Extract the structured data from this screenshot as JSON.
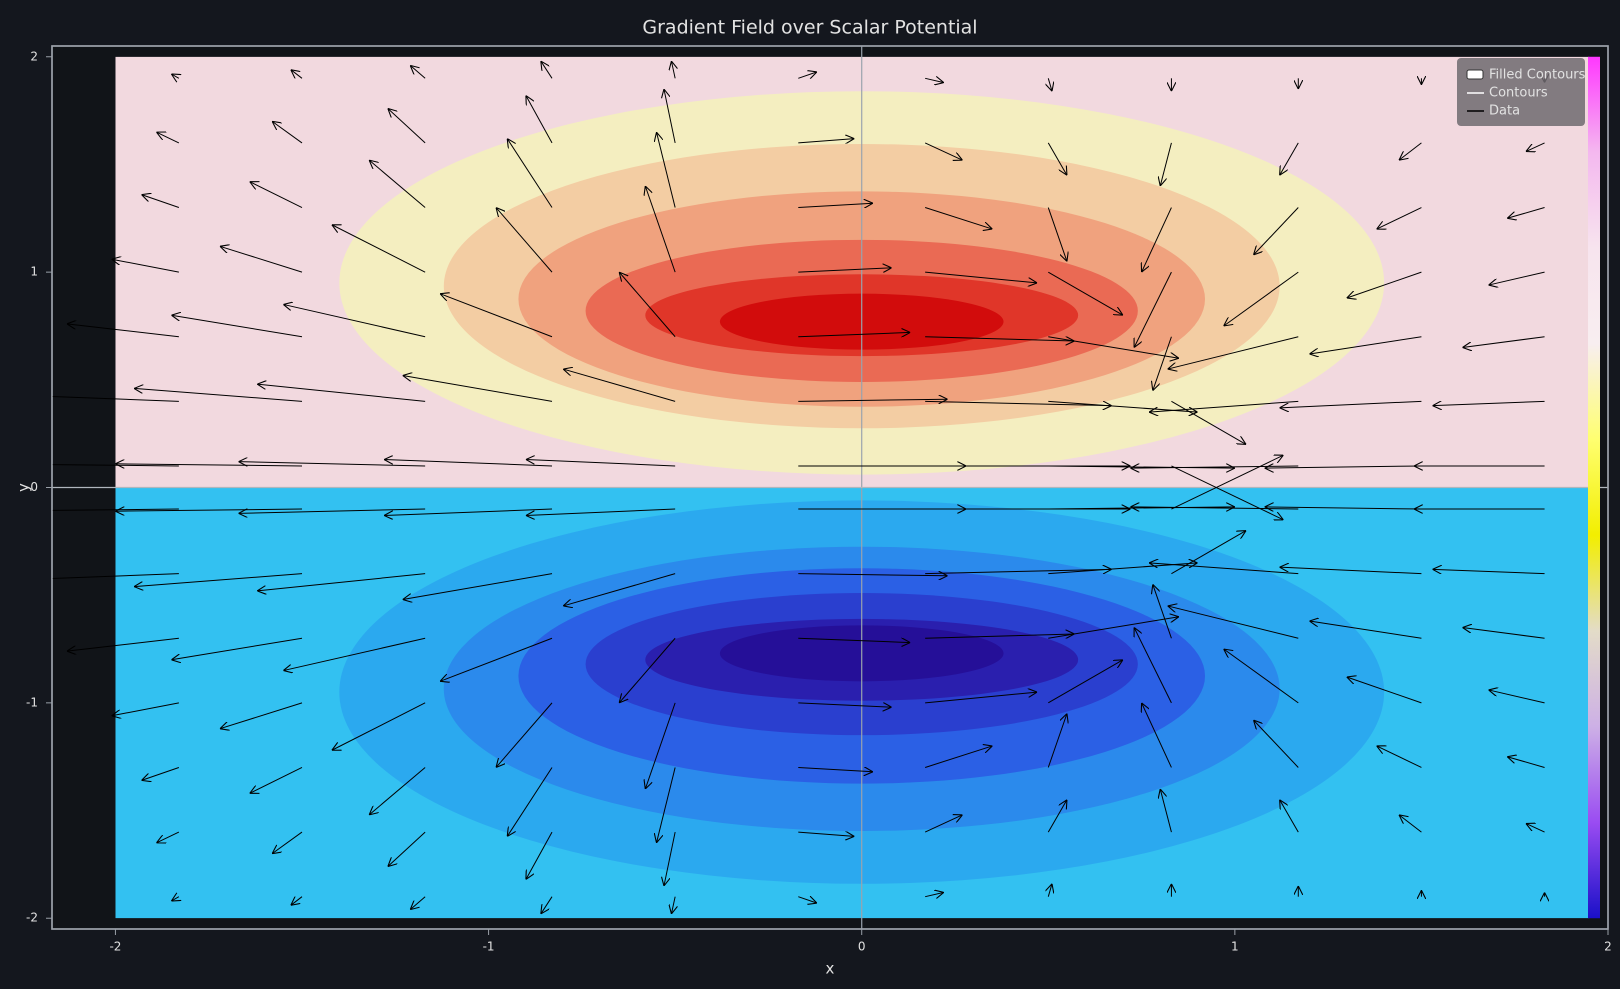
{
  "chart_data": {
    "type": "quiver-contour",
    "title": "Gradient Field over Scalar Potential",
    "x_label": "x",
    "y_label": "y",
    "xlim": [
      -2.17,
      2
    ],
    "ylim": [
      -2.05,
      2.05
    ],
    "xticks": [
      -2,
      -1,
      0,
      1,
      2
    ],
    "yticks": [
      -2,
      -1,
      0,
      1,
      2
    ],
    "legend": {
      "position": "upper right",
      "entries": [
        "Filled Contours",
        "Contours",
        "Data"
      ]
    },
    "contours": {
      "x_extent": [
        -2,
        1.95
      ],
      "y_extent": [
        -2,
        2
      ],
      "upper": {
        "background": "#f2d9df",
        "bands": [
          {
            "color": "#f4eec0",
            "cx": 0,
            "cy": 0.95,
            "rx": 1.4,
            "ry": 0.89
          },
          {
            "color": "#f3cda3",
            "cx": 0,
            "cy": 0.935,
            "rx": 1.12,
            "ry": 0.66
          },
          {
            "color": "#f0a27e",
            "cx": 0,
            "cy": 0.875,
            "rx": 0.92,
            "ry": 0.5
          },
          {
            "color": "#ea6a54",
            "cx": 0,
            "cy": 0.82,
            "rx": 0.74,
            "ry": 0.33
          },
          {
            "color": "#e03629",
            "cx": 0,
            "cy": 0.8,
            "rx": 0.58,
            "ry": 0.19
          },
          {
            "color": "#d20c0c",
            "cx": 0,
            "cy": 0.77,
            "rx": 0.38,
            "ry": 0.13
          }
        ]
      },
      "lower": {
        "background": "#33c1f1",
        "bands": [
          {
            "color": "#2ba9ef",
            "cx": 0,
            "cy": -0.95,
            "rx": 1.4,
            "ry": 0.89
          },
          {
            "color": "#2b8aec",
            "cx": 0,
            "cy": -0.935,
            "rx": 1.12,
            "ry": 0.66
          },
          {
            "color": "#2b60e5",
            "cx": 0,
            "cy": -0.875,
            "rx": 0.92,
            "ry": 0.5
          },
          {
            "color": "#2a3fcf",
            "cx": 0,
            "cy": -0.82,
            "rx": 0.74,
            "ry": 0.33
          },
          {
            "color": "#2a1fae",
            "cx": 0,
            "cy": -0.8,
            "rx": 0.58,
            "ry": 0.19
          },
          {
            "color": "#250f98",
            "cx": 0,
            "cy": -0.77,
            "rx": 0.38,
            "ry": 0.13
          }
        ]
      }
    },
    "colorbar_colors": [
      "#ff38ff",
      "#f4b8ef",
      "#f7e4ee",
      "#f8eef0",
      "#ffff70",
      "#f2ee00",
      "#e3dcc8",
      "#cdb0e6",
      "#9a4cf2",
      "#1a10c8"
    ],
    "quiver": {
      "color": "#000000",
      "x": [
        -1.83,
        -1.5,
        -1.17,
        -0.83,
        -0.5,
        -0.17,
        0.17,
        0.5,
        0.83,
        1.17,
        1.5,
        1.83
      ],
      "y": [
        1.9,
        1.6,
        1.3,
        1.0,
        0.7,
        0.4,
        0.1,
        -0.1,
        -0.4,
        -0.7,
        -1.0,
        -1.3,
        -1.6,
        -1.9
      ],
      "u": [
        [
          -0.02,
          -0.03,
          -0.04,
          -0.03,
          -0.01,
          0.05,
          0.05,
          0.01,
          0,
          0,
          0,
          0
        ],
        [
          -0.06,
          -0.08,
          -0.1,
          -0.07,
          -0.03,
          0.15,
          0.1,
          0.05,
          -0.03,
          -0.05,
          -0.06,
          -0.05
        ],
        [
          -0.1,
          -0.14,
          -0.15,
          -0.12,
          -0.05,
          0.2,
          0.18,
          0.05,
          -0.08,
          -0.12,
          -0.12,
          -0.1
        ],
        [
          -0.18,
          -0.22,
          -0.25,
          -0.15,
          -0.08,
          0.25,
          0.3,
          0.2,
          -0.1,
          -0.2,
          -0.2,
          -0.15
        ],
        [
          -0.3,
          -0.35,
          -0.38,
          -0.3,
          -0.15,
          0.3,
          0.4,
          0.35,
          -0.05,
          -0.35,
          -0.3,
          -0.22
        ],
        [
          -0.45,
          -0.45,
          -0.45,
          -0.4,
          -0.3,
          0.4,
          0.5,
          0.4,
          0.2,
          -0.4,
          -0.38,
          -0.3
        ],
        [
          -0.55,
          -0.5,
          -0.5,
          -0.45,
          -0.4,
          0.45,
          0.55,
          0.5,
          0.3,
          -0.45,
          -0.42,
          -0.35
        ],
        [
          -0.55,
          -0.5,
          -0.5,
          -0.45,
          -0.4,
          0.45,
          0.55,
          0.5,
          0.3,
          -0.45,
          -0.42,
          -0.35
        ],
        [
          -0.45,
          -0.45,
          -0.45,
          -0.4,
          -0.3,
          0.4,
          0.5,
          0.4,
          0.2,
          -0.4,
          -0.38,
          -0.3
        ],
        [
          -0.3,
          -0.35,
          -0.38,
          -0.3,
          -0.15,
          0.3,
          0.4,
          0.35,
          -0.05,
          -0.35,
          -0.3,
          -0.22
        ],
        [
          -0.18,
          -0.22,
          -0.25,
          -0.15,
          -0.08,
          0.25,
          0.3,
          0.2,
          -0.1,
          -0.2,
          -0.2,
          -0.15
        ],
        [
          -0.1,
          -0.14,
          -0.15,
          -0.12,
          -0.05,
          0.2,
          0.18,
          0.05,
          -0.08,
          -0.12,
          -0.12,
          -0.1
        ],
        [
          -0.06,
          -0.08,
          -0.1,
          -0.07,
          -0.03,
          0.15,
          0.1,
          0.05,
          -0.03,
          -0.05,
          -0.06,
          -0.05
        ],
        [
          -0.02,
          -0.03,
          -0.04,
          -0.03,
          -0.01,
          0.05,
          0.05,
          0.01,
          0,
          0,
          0,
          0
        ]
      ],
      "v": [
        [
          0.02,
          0.04,
          0.06,
          0.08,
          0.08,
          0.03,
          -0.02,
          -0.06,
          -0.06,
          -0.05,
          -0.03,
          -0.02
        ],
        [
          0.05,
          0.1,
          0.16,
          0.22,
          0.25,
          0.02,
          -0.08,
          -0.15,
          -0.2,
          -0.15,
          -0.08,
          -0.04
        ],
        [
          0.06,
          0.12,
          0.22,
          0.32,
          0.35,
          0.02,
          -0.1,
          -0.25,
          -0.3,
          -0.22,
          -0.1,
          -0.05
        ],
        [
          0.06,
          0.12,
          0.22,
          0.3,
          0.4,
          0.02,
          -0.05,
          -0.2,
          -0.35,
          -0.25,
          -0.12,
          -0.06
        ],
        [
          0.06,
          0.1,
          0.15,
          0.2,
          0.3,
          0.02,
          -0.02,
          -0.1,
          -0.25,
          -0.15,
          -0.08,
          -0.05
        ],
        [
          0.03,
          0.06,
          0.08,
          0.12,
          0.15,
          0.01,
          -0.02,
          -0.05,
          -0.2,
          -0.05,
          -0.03,
          -0.02
        ],
        [
          0.01,
          0.01,
          0.02,
          0.03,
          0.03,
          0,
          0,
          -0.01,
          -0.25,
          -0.01,
          -0.01,
          0
        ],
        [
          -0.01,
          -0.01,
          -0.02,
          -0.03,
          -0.03,
          0,
          0,
          0.01,
          0.25,
          0.01,
          0.01,
          0
        ],
        [
          -0.03,
          -0.06,
          -0.08,
          -0.12,
          -0.15,
          -0.01,
          0.02,
          0.05,
          0.2,
          0.05,
          0.03,
          0.02
        ],
        [
          -0.06,
          -0.1,
          -0.15,
          -0.2,
          -0.3,
          -0.02,
          0.02,
          0.1,
          0.25,
          0.15,
          0.08,
          0.05
        ],
        [
          -0.06,
          -0.12,
          -0.22,
          -0.3,
          -0.4,
          -0.02,
          0.05,
          0.2,
          0.35,
          0.25,
          0.12,
          0.06
        ],
        [
          -0.06,
          -0.12,
          -0.22,
          -0.32,
          -0.35,
          -0.02,
          0.1,
          0.25,
          0.3,
          0.22,
          0.1,
          0.05
        ],
        [
          -0.05,
          -0.1,
          -0.16,
          -0.22,
          -0.25,
          -0.02,
          0.08,
          0.15,
          0.2,
          0.15,
          0.08,
          0.04
        ],
        [
          -0.02,
          -0.04,
          -0.06,
          -0.08,
          -0.08,
          -0.03,
          0.02,
          0.06,
          0.06,
          0.05,
          0.03,
          0.02
        ]
      ]
    }
  }
}
